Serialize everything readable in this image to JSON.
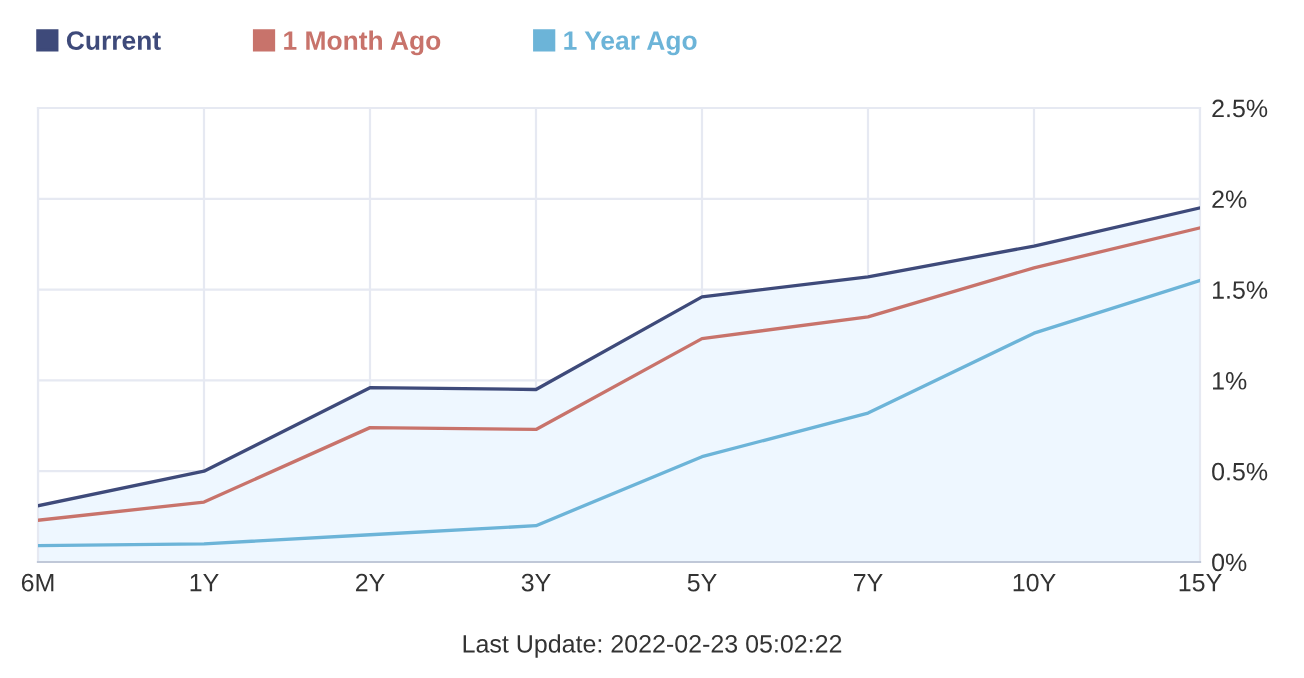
{
  "chart_data": {
    "type": "line",
    "categories": [
      "6M",
      "1Y",
      "2Y",
      "3Y",
      "5Y",
      "7Y",
      "10Y",
      "15Y"
    ],
    "series": [
      {
        "name": "Current",
        "color": "#3e4a7a",
        "type": "area",
        "values": [
          0.31,
          0.5,
          0.96,
          0.95,
          1.46,
          1.57,
          1.74,
          1.95
        ]
      },
      {
        "name": "1 Month Ago",
        "color": "#c8736b",
        "values": [
          0.23,
          0.33,
          0.74,
          0.73,
          1.23,
          1.35,
          1.62,
          1.84
        ]
      },
      {
        "name": "1 Year Ago",
        "color": "#6cb4d8",
        "values": [
          0.09,
          0.1,
          0.15,
          0.2,
          0.58,
          0.82,
          1.26,
          1.55
        ]
      }
    ],
    "ylim": [
      0,
      2.5
    ],
    "yticks": [
      {
        "value": 0,
        "label": "0%"
      },
      {
        "value": 0.5,
        "label": "0.5%"
      },
      {
        "value": 1,
        "label": "1%"
      },
      {
        "value": 1.5,
        "label": "1.5%"
      },
      {
        "value": 2,
        "label": "2%"
      },
      {
        "value": 2.5,
        "label": "2.5%"
      }
    ],
    "grid": true,
    "legend": "top left",
    "marker": "none",
    "line_style": "solid",
    "annotations": [
      "Last Update: 2022-02-23 05:02:22"
    ]
  }
}
